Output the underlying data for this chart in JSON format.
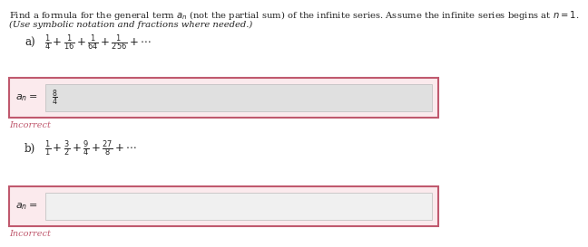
{
  "title_line1": "Find a formula for the general term $a_n$ (not the partial sum) of the infinite series. Assume the infinite series begins at $n = 1$.",
  "title_line2": "(Use symbolic notation and fractions where needed.)",
  "series_a_label": "a)",
  "series_a_terms": "$\\frac{1}{4} + \\frac{1}{16} + \\frac{1}{64} + \\frac{1}{256} + \\cdots$",
  "answer_a_label": "$a_n =$",
  "answer_a_content": "$\\frac{8}{4}$",
  "incorrect_label": "Incorrect",
  "series_b_label": "b)",
  "series_b_terms": "$\\frac{1}{1} + \\frac{3}{2} + \\frac{9}{4} + \\frac{27}{8} + \\cdots$",
  "answer_b_label": "$a_n =$",
  "answer_b_content": "",
  "background_color": "#ffffff",
  "box_border_color": "#c0596e",
  "box_fill_color": "#fbeaed",
  "input_fill_color": "#e0e0e0",
  "input_b_fill_color": "#f0f0f0",
  "incorrect_color": "#c0596e",
  "text_color": "#222222",
  "title_fontsize": 7.2,
  "series_fontsize": 8.5,
  "answer_label_fontsize": 8.0,
  "incorrect_fontsize": 7.0
}
